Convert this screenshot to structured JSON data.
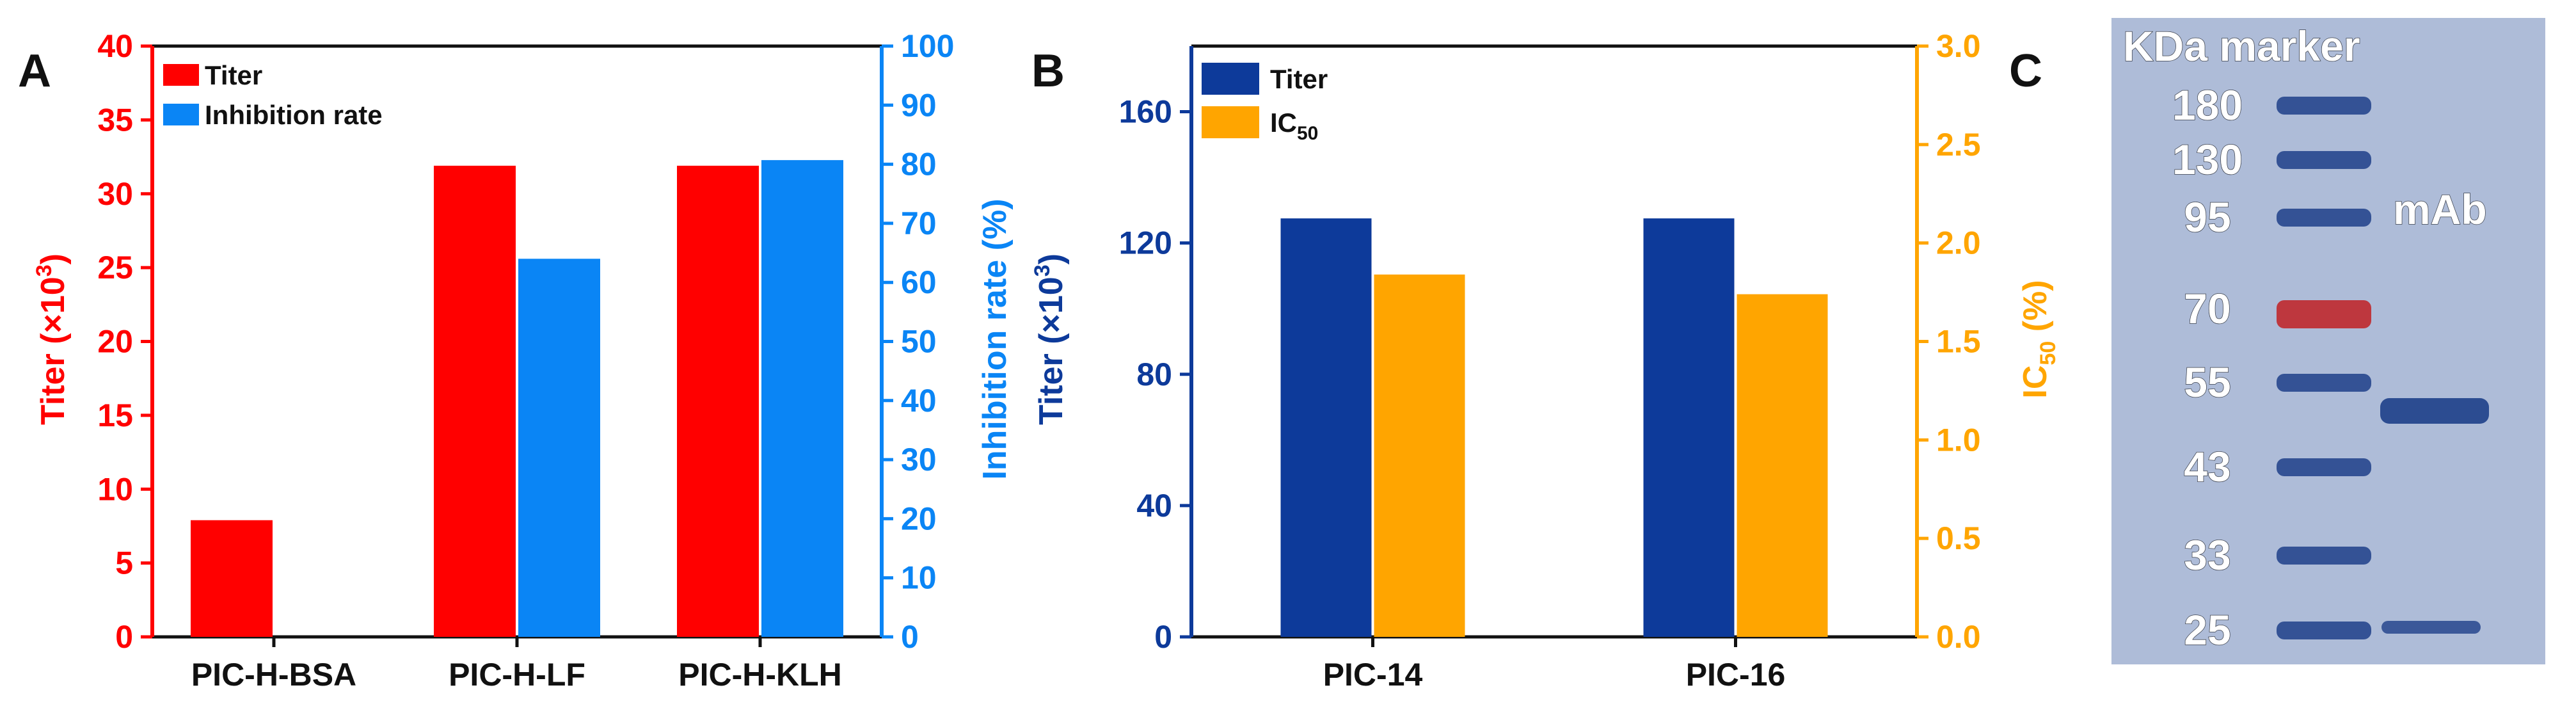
{
  "panel_labels": [
    "A",
    "B",
    "C"
  ],
  "colors": {
    "titer_red": "#ff0000",
    "inhibition_blue": "#0a85f5",
    "titer_navy": "#0d3a9a",
    "ic50_orange": "#ffa500",
    "axis_dark": "#111111",
    "gel_bg": "#b7c4dc",
    "band_blue": "#1e3f8a",
    "band_red": "#c0282e"
  },
  "chart_data": [
    {
      "panel": "A",
      "type": "bar",
      "categories": [
        "PIC-H-BSA",
        "PIC-H-LF",
        "PIC-H-KLH"
      ],
      "series": [
        {
          "name": "Titer",
          "axis": "left",
          "color": "#ff0000",
          "values": [
            7.9,
            31.9,
            31.9
          ]
        },
        {
          "name": "Inhibition rate",
          "axis": "right",
          "color": "#0a85f5",
          "values": [
            0,
            64,
            80.7
          ]
        }
      ],
      "y_left": {
        "label": "Titer (×10",
        "label_sup": "3",
        "label_end": ")",
        "range": [
          0,
          40
        ],
        "ticks": [
          0,
          5,
          10,
          15,
          20,
          25,
          30,
          35,
          40
        ]
      },
      "y_right": {
        "label": "Inhibition rate (%)",
        "range": [
          0,
          100
        ],
        "ticks": [
          0,
          10,
          20,
          30,
          40,
          50,
          60,
          70,
          80,
          90,
          100
        ]
      },
      "legend": {
        "placement": "top-left",
        "entries": [
          "Titer",
          "Inhibition rate"
        ]
      }
    },
    {
      "panel": "B",
      "type": "bar",
      "categories": [
        "PIC-14",
        "PIC-16"
      ],
      "series": [
        {
          "name": "Titer",
          "axis": "left",
          "color": "#0d3a9a",
          "values": [
            127.5,
            127.5
          ]
        },
        {
          "name": "IC50",
          "axis": "right",
          "color": "#ffa500",
          "values": [
            1.84,
            1.74
          ]
        }
      ],
      "y_left": {
        "label": "Titer (×10",
        "label_sup": "3",
        "label_end": ")",
        "range": [
          0,
          180
        ],
        "ticks": [
          0,
          40,
          80,
          120,
          160
        ]
      },
      "y_right": {
        "label": "IC",
        "label_sub": "50",
        "label_end": " (%)",
        "range": [
          0,
          3.0
        ],
        "ticks": [
          "0.0",
          "0.5",
          "1.0",
          "1.5",
          "2.0",
          "2.5",
          "3.0"
        ]
      },
      "legend": {
        "placement": "top-left",
        "entries": [
          {
            "text": "Titer"
          },
          {
            "text": "IC",
            "sub": "50"
          }
        ]
      }
    },
    {
      "panel": "C",
      "type": "gel",
      "header": "KDa marker",
      "marker_sizes": [
        "180",
        "130",
        "95",
        "70",
        "55",
        "43",
        "33",
        "25"
      ],
      "lane_label": "mAb",
      "mab_bands": [
        "50",
        "25"
      ]
    }
  ]
}
